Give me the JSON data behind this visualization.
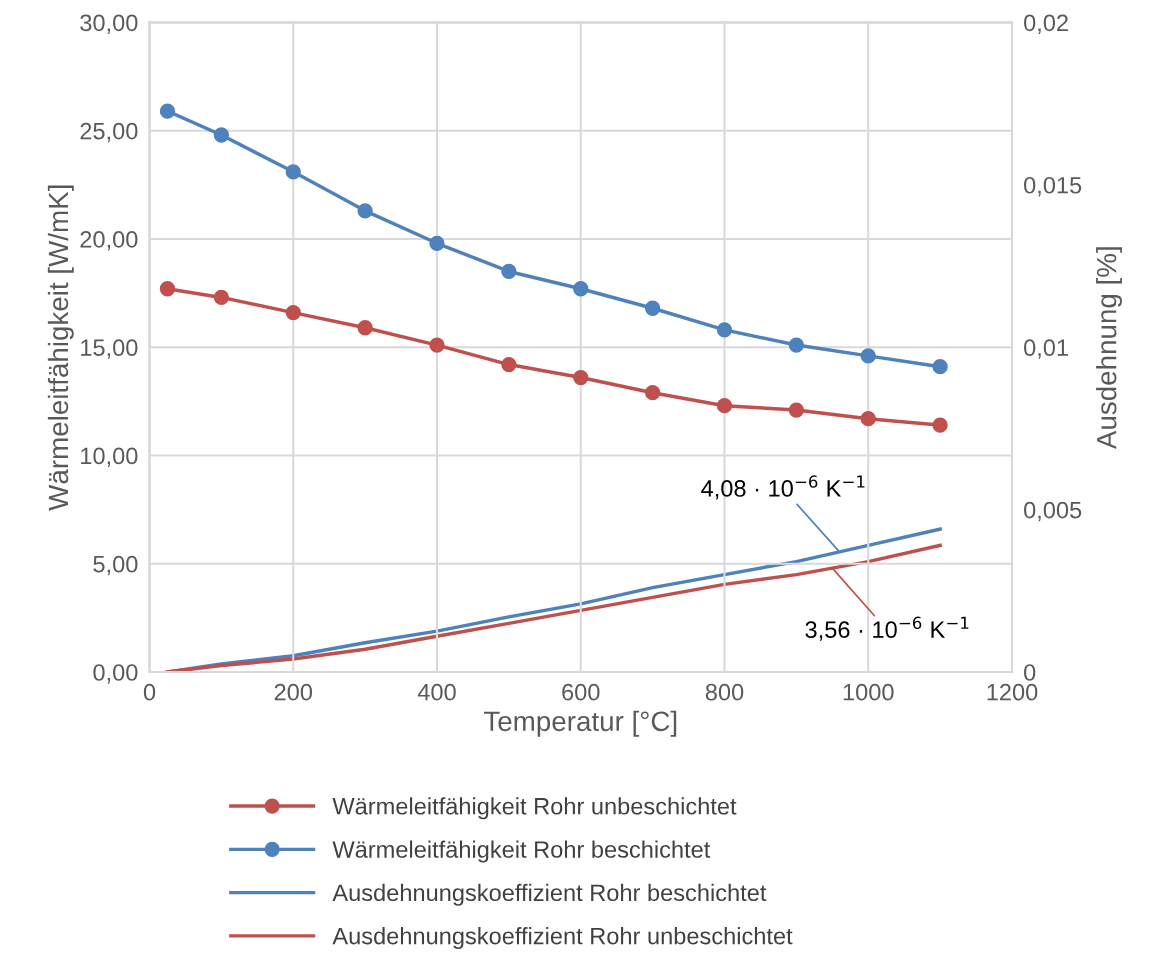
{
  "chart_data": {
    "type": "line",
    "xlabel": "Temperatur [°C]",
    "ylabel": "Wärmeleitfähigkeit [W/mK]",
    "y2label": "Ausdehnung [%]",
    "x": [
      25,
      100,
      200,
      300,
      400,
      500,
      600,
      700,
      800,
      900,
      1000,
      1100
    ],
    "xlim": [
      0,
      1200
    ],
    "xticks": [
      0,
      200,
      400,
      600,
      800,
      1000,
      1200
    ],
    "ylim": [
      0,
      30
    ],
    "yticks": [
      {
        "value": 0,
        "label": "0,00"
      },
      {
        "value": 5,
        "label": "5,00"
      },
      {
        "value": 10,
        "label": "10,00"
      },
      {
        "value": 15,
        "label": "15,00"
      },
      {
        "value": 20,
        "label": "20,00"
      },
      {
        "value": 25,
        "label": "25,00"
      },
      {
        "value": 30,
        "label": "30,00"
      }
    ],
    "y2lim": [
      0,
      0.02
    ],
    "y2ticks": [
      0,
      {
        "value": 0.005,
        "label": "0,005"
      },
      {
        "value": 0.01,
        "label": "0,01"
      },
      {
        "value": 0.015,
        "label": "0,015"
      },
      {
        "value": 0.02,
        "label": "0,02"
      }
    ],
    "grid": true,
    "legend": "bottom",
    "series": [
      {
        "name": "Wärmeleitfähigkeit Rohr unbeschichtet",
        "color": "#c0504d",
        "marker": "circle",
        "values": [
          17.7,
          17.3,
          16.6,
          15.9,
          15.1,
          14.2,
          13.6,
          12.9,
          12.3,
          12.1,
          11.7,
          11.4
        ]
      },
      {
        "name": "Wärmeleitfähigkeit Rohr beschichtet",
        "color": "#4f81bd",
        "marker": "circle",
        "values": [
          25.9,
          24.8,
          23.1,
          21.3,
          19.8,
          18.5,
          17.7,
          16.8,
          15.8,
          15.1,
          14.6,
          14.1
        ]
      },
      {
        "name": "Ausdehnungskoeffizient Rohr beschichtet",
        "color": "#4f81bd",
        "marker": "none",
        "axis": "y2",
        "values": [
          0,
          0.00025,
          0.0005,
          0.0009,
          0.00126,
          0.0017,
          0.0021,
          0.0026,
          0.003,
          0.0034,
          0.0039,
          0.0044
        ]
      },
      {
        "name": "Ausdehnungskoeffizient Rohr unbeschichtet",
        "color": "#c0504d",
        "marker": "none",
        "axis": "y2",
        "values": [
          0,
          0.0002,
          0.0004,
          0.0007,
          0.0011,
          0.0015,
          0.0019,
          0.0023,
          0.0027,
          0.003,
          0.0034,
          0.0039
        ]
      }
    ],
    "annotations": [
      {
        "text": "4,08 · 10$^{−6}$ K$^{−1}$",
        "x": 960,
        "y": 5.55
      },
      {
        "text": "3,56 · 10$^{−6}$ K$^{−1}$",
        "x": 950,
        "y": 4.8
      }
    ]
  }
}
